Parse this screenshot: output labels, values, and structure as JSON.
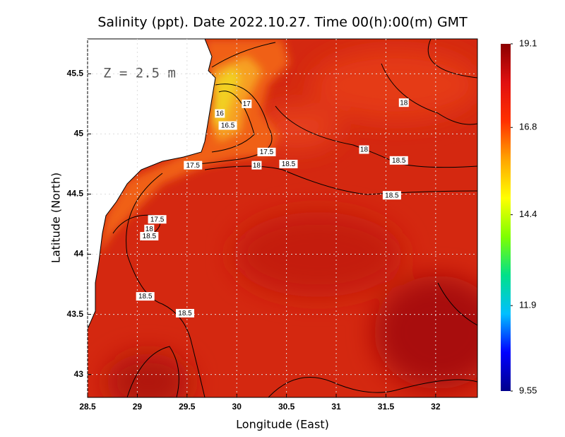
{
  "title": "Salinity (ppt). Date 2022.10.27. Time 00(h):00(m) GMT",
  "annotation": "Z = 2.5 m",
  "x_axis": {
    "label": "Longitude (East)",
    "lim": [
      28.5,
      32.42
    ],
    "ticks": [
      28.5,
      29,
      29.5,
      30,
      30.5,
      31,
      31.5,
      32
    ]
  },
  "y_axis": {
    "label": "Latitude (North)",
    "lim": [
      42.81,
      45.79
    ],
    "ticks": [
      43,
      43.5,
      44,
      44.5,
      45,
      45.5
    ]
  },
  "colorbar": {
    "lim": [
      9.55,
      19.1
    ],
    "ticks": [
      9.55,
      11.9,
      14.4,
      16.8,
      19.1
    ],
    "colors": [
      "#00008b",
      "#0000ff",
      "#00bfff",
      "#00e08a",
      "#7fff00",
      "#ffff00",
      "#ffa500",
      "#ff3000",
      "#e01010",
      "#8b0000"
    ]
  },
  "contour_labels": [
    {
      "value": 17,
      "lon": 30.1,
      "lat": 45.25
    },
    {
      "value": 16,
      "lon": 29.83,
      "lat": 45.17
    },
    {
      "value": 16.5,
      "lon": 29.91,
      "lat": 45.07
    },
    {
      "value": 17.5,
      "lon": 30.3,
      "lat": 44.85
    },
    {
      "value": 18,
      "lon": 30.2,
      "lat": 44.74
    },
    {
      "value": 18.5,
      "lon": 30.52,
      "lat": 44.75
    },
    {
      "value": 18,
      "lon": 31.28,
      "lat": 44.87
    },
    {
      "value": 18,
      "lon": 31.68,
      "lat": 45.26
    },
    {
      "value": 18.5,
      "lon": 31.63,
      "lat": 44.78
    },
    {
      "value": 18.5,
      "lon": 31.56,
      "lat": 44.49
    },
    {
      "value": 17.5,
      "lon": 29.56,
      "lat": 44.74
    },
    {
      "value": 17.5,
      "lon": 29.2,
      "lat": 44.29
    },
    {
      "value": 18,
      "lon": 29.12,
      "lat": 44.21
    },
    {
      "value": 18.5,
      "lon": 29.12,
      "lat": 44.15
    },
    {
      "value": 18.5,
      "lon": 29.08,
      "lat": 43.65
    },
    {
      "value": 18.5,
      "lon": 29.48,
      "lat": 43.51
    }
  ]
}
